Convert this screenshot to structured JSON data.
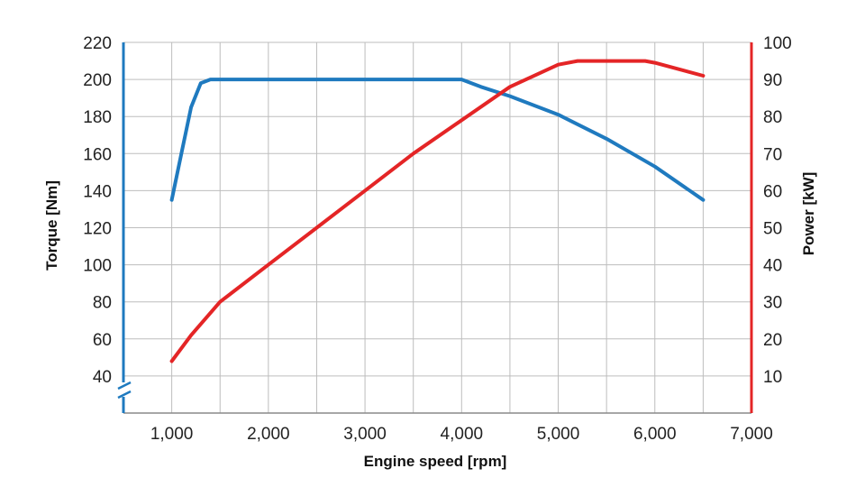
{
  "chart_data": {
    "type": "line",
    "title": "",
    "xlabel": "Engine speed [rpm]",
    "ylabel_left": "Torque [Nm]",
    "ylabel_right": "Power [kW]",
    "xlim": [
      500,
      7000
    ],
    "x_ticks": [
      1000,
      2000,
      3000,
      4000,
      5000,
      6000,
      7000
    ],
    "x_tick_labels": [
      "1,000",
      "2,000",
      "3,000",
      "4,000",
      "5,000",
      "6,000",
      "7,000"
    ],
    "ylim_left": [
      20,
      220
    ],
    "y_left_ticks": [
      40,
      60,
      80,
      100,
      120,
      140,
      160,
      180,
      200,
      220
    ],
    "ylim_right": [
      0,
      100
    ],
    "y_right_ticks": [
      10,
      20,
      30,
      40,
      50,
      60,
      70,
      80,
      90,
      100
    ],
    "axis_break": "left axis below 40",
    "grid": true,
    "series": [
      {
        "name": "Torque",
        "axis": "left",
        "color": "#1f7abf",
        "x": [
          1000,
          1100,
          1200,
          1300,
          1400,
          1500,
          2000,
          3000,
          4000,
          4200,
          4500,
          5000,
          5500,
          6000,
          6500
        ],
        "values": [
          135,
          160,
          185,
          198,
          200,
          200,
          200,
          200,
          200,
          196,
          191,
          181,
          168,
          153,
          135
        ]
      },
      {
        "name": "Power",
        "axis": "right",
        "color": "#e42526",
        "x": [
          1000,
          1200,
          1500,
          2000,
          2500,
          3000,
          3500,
          4000,
          4500,
          5000,
          5200,
          5500,
          5900,
          6000,
          6500
        ],
        "values": [
          14,
          21,
          30,
          40,
          50,
          60,
          70,
          79,
          88,
          94,
          95,
          95,
          95,
          94.5,
          91
        ]
      }
    ]
  }
}
